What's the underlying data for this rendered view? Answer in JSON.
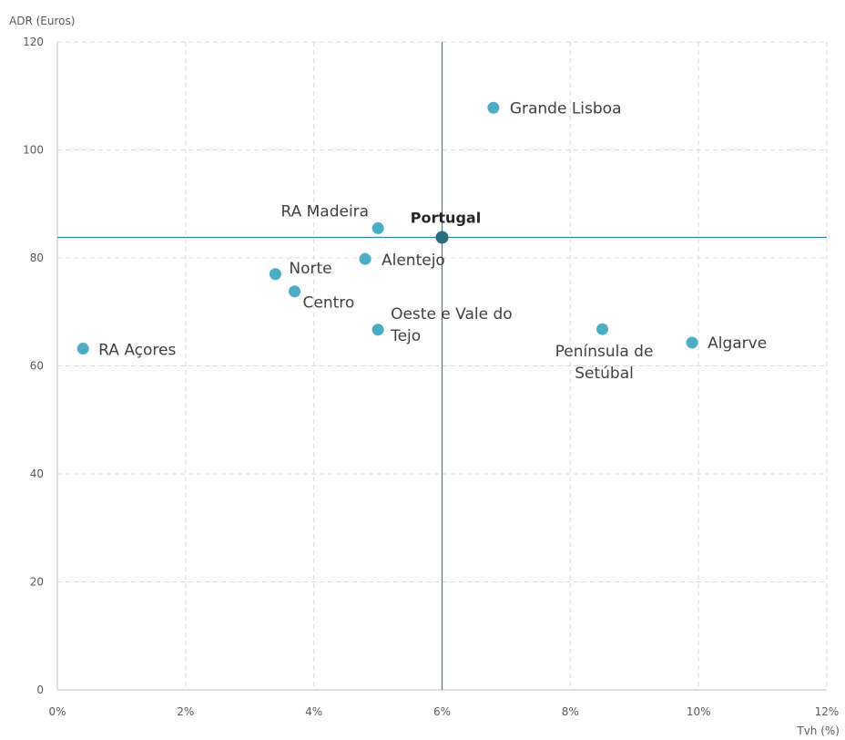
{
  "chart_data": {
    "type": "scatter",
    "xlabel": "Tvh (%)",
    "ylabel": "ADR (Euros)",
    "xlim": [
      0,
      12
    ],
    "ylim": [
      0,
      120
    ],
    "x_ticks": [
      "0%",
      "2%",
      "4%",
      "6%",
      "8%",
      "10%",
      "12%"
    ],
    "y_ticks": [
      "0",
      "20",
      "40",
      "60",
      "80",
      "100",
      "120"
    ],
    "grid": true,
    "reference_lines": {
      "x": 6.0,
      "y": 83.8
    },
    "colors": {
      "point": "#4bacc6",
      "reference_point": "#276f80",
      "reference_line": "#31849b",
      "grid": "#d9d9d9"
    },
    "points": [
      {
        "name": "Portugal",
        "x": 6.0,
        "y": 83.8,
        "highlight": true
      },
      {
        "name": "Grande Lisboa",
        "x": 6.8,
        "y": 107.8
      },
      {
        "name": "RA Madeira",
        "x": 5.0,
        "y": 85.5
      },
      {
        "name": "Alentejo",
        "x": 4.8,
        "y": 79.8
      },
      {
        "name": "Norte",
        "x": 3.4,
        "y": 77.0
      },
      {
        "name": "Centro",
        "x": 3.7,
        "y": 73.8
      },
      {
        "name": "Oeste e Vale do Tejo",
        "x": 5.0,
        "y": 66.7,
        "lines": [
          "Oeste e Vale do",
          "Tejo"
        ]
      },
      {
        "name": "RA Açores",
        "x": 0.4,
        "y": 63.2
      },
      {
        "name": "Península de Setúbal",
        "x": 8.5,
        "y": 66.8,
        "lines": [
          "Península de",
          "Setúbal"
        ]
      },
      {
        "name": "Algarve",
        "x": 9.9,
        "y": 64.3
      }
    ]
  }
}
